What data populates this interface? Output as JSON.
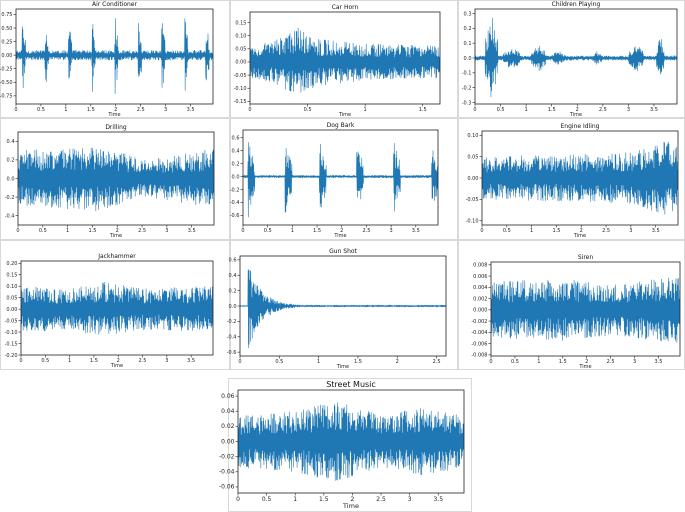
{
  "colors": {
    "waveform": "#1f77b4",
    "axes": "#222222",
    "panel_border": "#d9d9d9"
  },
  "chart_data": [
    {
      "type": "line",
      "title": "Air Conditioner",
      "xlabel": "Time",
      "ylabel": "",
      "xlim": [
        0,
        3.95
      ],
      "ylim": [
        -0.9,
        0.85
      ],
      "grid": false,
      "xticks": [
        0,
        0.5,
        1,
        1.5,
        2,
        2.5,
        3,
        3.5
      ],
      "xtick_labels": [
        "0",
        "0.5",
        "1",
        "1.5",
        "2",
        "2.5",
        "3",
        "3.5"
      ],
      "yticks": [
        -0.75,
        -0.5,
        -0.25,
        0,
        0.25,
        0.5,
        0.75
      ],
      "ytick_labels": [
        "-0.75",
        "-0.50",
        "-0.25",
        "0.00",
        "0.25",
        "0.50",
        "0.75"
      ],
      "waveform": {
        "pattern": "pulses",
        "baseline": 0.09,
        "peak": 0.78,
        "peak_neg": 0.8,
        "onsets": [
          0.12,
          0.58,
          1.05,
          1.52,
          1.98,
          2.45,
          2.92,
          3.38,
          3.8
        ],
        "pulse_width": 0.07
      }
    },
    {
      "type": "line",
      "title": "Car Horn",
      "xlabel": "Time",
      "ylabel": "",
      "xlim": [
        0,
        1.65
      ],
      "ylim": [
        -0.16,
        0.19
      ],
      "grid": false,
      "xticks": [
        0,
        0.5,
        1,
        1.5
      ],
      "xtick_labels": [
        "0",
        "0.5",
        "1",
        "1.5"
      ],
      "yticks": [
        -0.15,
        -0.1,
        -0.05,
        0,
        0.05,
        0.1,
        0.15
      ],
      "ytick_labels": [
        "-0.15",
        "-0.10",
        "-0.05",
        "0.00",
        "0.05",
        "0.10",
        "0.15"
      ],
      "waveform": {
        "pattern": "dense",
        "envelope": [
          [
            0,
            0.06
          ],
          [
            0.2,
            0.08
          ],
          [
            0.42,
            0.13
          ],
          [
            0.6,
            0.09
          ],
          [
            1.0,
            0.07
          ],
          [
            1.65,
            0.06
          ]
        ]
      }
    },
    {
      "type": "line",
      "title": "Children Playing",
      "xlabel": "Time",
      "ylabel": "",
      "xlim": [
        0,
        3.95
      ],
      "ylim": [
        -0.31,
        0.33
      ],
      "grid": false,
      "xticks": [
        0,
        0.5,
        1,
        1.5,
        2,
        2.5,
        3,
        3.5
      ],
      "xtick_labels": [
        "0",
        "0.5",
        "1",
        "1.5",
        "2",
        "2.5",
        "3",
        "3.5"
      ],
      "yticks": [
        -0.3,
        -0.2,
        -0.1,
        0,
        0.1,
        0.2,
        0.3
      ],
      "ytick_labels": [
        "-0.3",
        "-0.2",
        "-0.1",
        "0.0",
        "0.1",
        "0.2",
        "0.3"
      ],
      "waveform": {
        "pattern": "bursts",
        "baseline": 0.015,
        "bursts": [
          [
            0.2,
            0.45,
            0.3
          ],
          [
            0.55,
            0.9,
            0.08
          ],
          [
            1.1,
            1.4,
            0.1
          ],
          [
            1.5,
            1.75,
            0.05
          ],
          [
            2.3,
            2.5,
            0.05
          ],
          [
            3.0,
            3.3,
            0.1
          ],
          [
            3.55,
            3.7,
            0.15
          ]
        ]
      }
    },
    {
      "type": "line",
      "title": "Drilling",
      "xlabel": "Time",
      "ylabel": "",
      "xlim": [
        0,
        3.95
      ],
      "ylim": [
        -0.5,
        0.5
      ],
      "grid": false,
      "xticks": [
        0,
        0.5,
        1,
        1.5,
        2,
        2.5,
        3,
        3.5
      ],
      "xtick_labels": [
        "0",
        "0.5",
        "1",
        "1.5",
        "2",
        "2.5",
        "3",
        "3.5"
      ],
      "yticks": [
        -0.4,
        -0.2,
        0,
        0.2,
        0.4
      ],
      "ytick_labels": [
        "-0.4",
        "-0.2",
        "0.0",
        "0.2",
        "0.4"
      ],
      "waveform": {
        "pattern": "dense",
        "envelope": [
          [
            0,
            0.3
          ],
          [
            1.5,
            0.36
          ],
          [
            2.6,
            0.2
          ],
          [
            3.95,
            0.32
          ]
        ]
      }
    },
    {
      "type": "line",
      "title": "Dog Bark",
      "xlabel": "Time",
      "ylabel": "",
      "xlim": [
        0,
        3.95
      ],
      "ylim": [
        -0.75,
        0.72
      ],
      "grid": false,
      "xticks": [
        0,
        0.5,
        1,
        1.5,
        2,
        2.5,
        3,
        3.5
      ],
      "xtick_labels": [
        "0",
        "0.5",
        "1",
        "1.5",
        "2",
        "2.5",
        "3",
        "3.5"
      ],
      "yticks": [
        -0.6,
        -0.4,
        -0.2,
        0,
        0.2,
        0.4,
        0.6
      ],
      "ytick_labels": [
        "-0.6",
        "-0.4",
        "-0.2",
        "0.0",
        "0.2",
        "0.4",
        "0.6"
      ],
      "waveform": {
        "pattern": "pulses",
        "baseline": 0.02,
        "peak": 0.6,
        "peak_neg": 0.65,
        "onsets": [
          0.1,
          0.85,
          1.55,
          2.3,
          3.05,
          3.82
        ],
        "pulse_width": 0.14
      }
    },
    {
      "type": "line",
      "title": "Engine Idling",
      "xlabel": "Time",
      "ylabel": "",
      "xlim": [
        0,
        3.95
      ],
      "ylim": [
        -0.11,
        0.11
      ],
      "grid": false,
      "xticks": [
        0,
        0.5,
        1,
        1.5,
        2,
        2.5,
        3,
        3.5
      ],
      "xtick_labels": [
        "0",
        "0.5",
        "1",
        "1.5",
        "2",
        "2.5",
        "3",
        "3.5"
      ],
      "yticks": [
        -0.1,
        -0.05,
        0,
        0.05,
        0.1
      ],
      "ytick_labels": [
        "-0.10",
        "-0.05",
        "0.00",
        "0.05",
        "0.10"
      ],
      "waveform": {
        "pattern": "dense",
        "envelope": [
          [
            0,
            0.05
          ],
          [
            2.0,
            0.055
          ],
          [
            3.0,
            0.06
          ],
          [
            3.8,
            0.09
          ],
          [
            3.95,
            0.07
          ]
        ]
      }
    },
    {
      "type": "line",
      "title": "Jackhammer",
      "xlabel": "Time",
      "ylabel": "",
      "xlim": [
        0,
        3.95
      ],
      "ylim": [
        -0.2,
        0.21
      ],
      "grid": false,
      "xticks": [
        0,
        0.5,
        1,
        1.5,
        2,
        2.5,
        3,
        3.5
      ],
      "xtick_labels": [
        "0",
        "0.5",
        "1",
        "1.5",
        "2",
        "2.5",
        "3",
        "3.5"
      ],
      "yticks": [
        -0.2,
        -0.15,
        -0.1,
        -0.05,
        0,
        0.05,
        0.1,
        0.15,
        0.2
      ],
      "ytick_labels": [
        "-0.20",
        "-0.15",
        "-0.10",
        "-0.05",
        "0.00",
        "0.05",
        "0.10",
        "0.15",
        "0.20"
      ],
      "waveform": {
        "pattern": "dense",
        "envelope": [
          [
            0,
            0.1
          ],
          [
            1.0,
            0.09
          ],
          [
            1.7,
            0.12
          ],
          [
            2.5,
            0.09
          ],
          [
            3.95,
            0.1
          ]
        ]
      }
    },
    {
      "type": "line",
      "title": "Gun Shot",
      "xlabel": "Time",
      "ylabel": "",
      "xlim": [
        0,
        2.62
      ],
      "ylim": [
        -0.65,
        0.65
      ],
      "grid": false,
      "xticks": [
        0,
        0.5,
        1,
        1.5,
        2,
        2.5
      ],
      "xtick_labels": [
        "0",
        "0.5",
        "1",
        "1.5",
        "2",
        "2.5"
      ],
      "yticks": [
        -0.6,
        -0.4,
        -0.2,
        0,
        0.2,
        0.4,
        0.6
      ],
      "ytick_labels": [
        "-0.6",
        "-0.4",
        "-0.2",
        "0.0",
        "0.2",
        "0.4",
        "0.6"
      ],
      "waveform": {
        "pattern": "impulse",
        "onset": 0.1,
        "peak": 0.55,
        "peak_neg": 0.58,
        "decay": 0.18,
        "floor": 0.012
      }
    },
    {
      "type": "line",
      "title": "Siren",
      "xlabel": "Time",
      "ylabel": "",
      "xlim": [
        0,
        3.95
      ],
      "ylim": [
        -0.0082,
        0.0085
      ],
      "grid": false,
      "xticks": [
        0,
        0.5,
        1,
        1.5,
        2,
        2.5,
        3,
        3.5
      ],
      "xtick_labels": [
        "0",
        "0.5",
        "1",
        "1.5",
        "2",
        "2.5",
        "3",
        "3.5"
      ],
      "yticks": [
        -0.008,
        -0.006,
        -0.004,
        -0.002,
        0,
        0.002,
        0.004,
        0.006,
        0.008
      ],
      "ytick_labels": [
        "-0.008",
        "-0.006",
        "-0.004",
        "-0.002",
        "0.000",
        "0.002",
        "0.004",
        "0.006",
        "0.008"
      ],
      "waveform": {
        "pattern": "dense",
        "envelope": [
          [
            0,
            0.005
          ],
          [
            1.5,
            0.0055
          ],
          [
            2.6,
            0.0045
          ],
          [
            3.95,
            0.006
          ]
        ]
      }
    },
    {
      "type": "line",
      "title": "Street Music",
      "xlabel": "Time",
      "ylabel": "",
      "xlim": [
        0,
        3.95
      ],
      "ylim": [
        -0.068,
        0.068
      ],
      "grid": false,
      "xticks": [
        0,
        0.5,
        1,
        1.5,
        2,
        2.5,
        3,
        3.5
      ],
      "xtick_labels": [
        "0",
        "0.5",
        "1",
        "1.5",
        "2",
        "2.5",
        "3",
        "3.5"
      ],
      "yticks": [
        -0.06,
        -0.04,
        -0.02,
        0,
        0.02,
        0.04,
        0.06
      ],
      "ytick_labels": [
        "-0.06",
        "-0.04",
        "-0.02",
        "0.00",
        "0.02",
        "0.04",
        "0.06"
      ],
      "waveform": {
        "pattern": "dense",
        "envelope": [
          [
            0,
            0.035
          ],
          [
            1.0,
            0.04
          ],
          [
            1.7,
            0.055
          ],
          [
            2.5,
            0.035
          ],
          [
            3.2,
            0.045
          ],
          [
            3.95,
            0.035
          ]
        ]
      }
    }
  ]
}
